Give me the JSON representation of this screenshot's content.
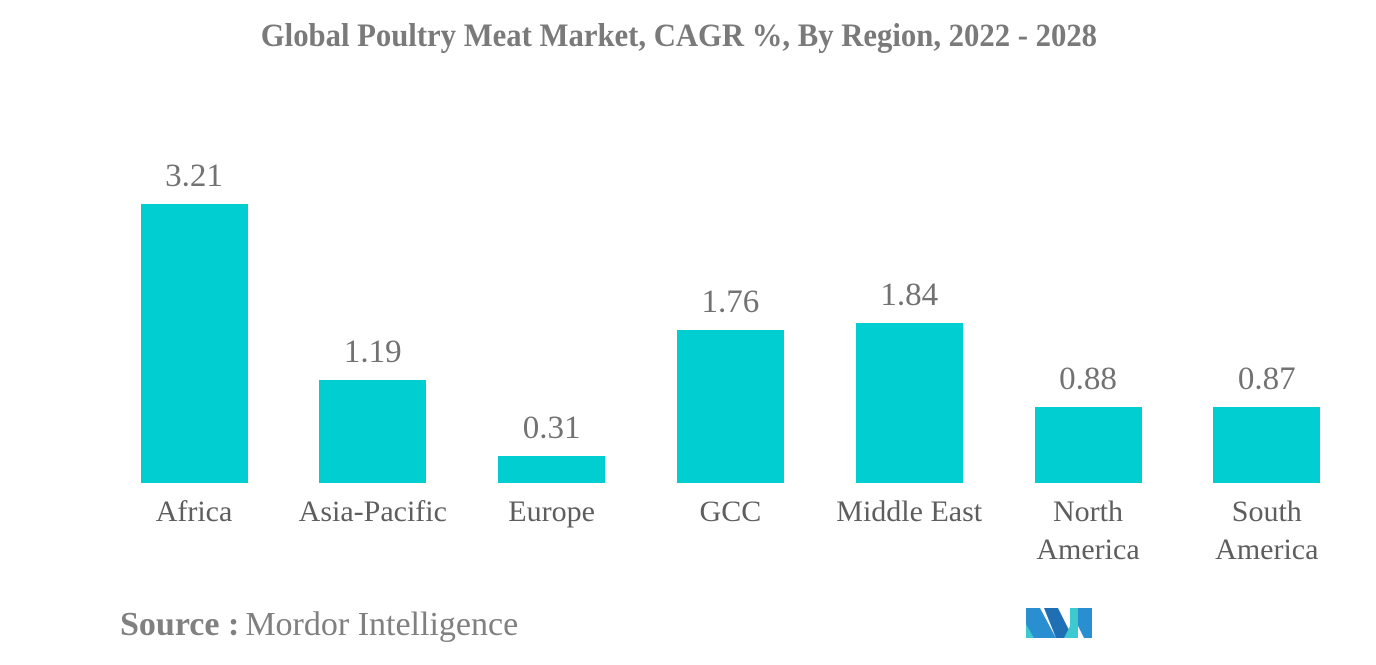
{
  "chart_data": {
    "type": "bar",
    "title": "Global Poultry Meat Market, CAGR %, By Region, 2022 - 2028",
    "xlabel": "",
    "ylabel": "",
    "categories": [
      "Africa",
      "Asia-Pacific",
      "Europe",
      "GCC",
      "Middle East",
      "North America",
      "South America"
    ],
    "values": [
      3.21,
      1.19,
      0.31,
      1.76,
      1.84,
      0.88,
      0.87
    ],
    "value_labels": [
      "3.21",
      "1.19",
      "0.31",
      "1.76",
      "1.84",
      "0.88",
      "0.87"
    ],
    "category_display": [
      "Africa",
      "Asia-Pacific",
      "Europe",
      "GCC",
      "Middle East",
      "North\nAmerica",
      "South\nAmerica"
    ],
    "ylim": [
      0,
      3.5
    ],
    "grid": false,
    "legend": null,
    "bar_color": "#00ced1"
  },
  "footer": {
    "source_label": "Source :",
    "source_value": "Mordor Intelligence",
    "logo": "mordor-intelligence-logo"
  }
}
